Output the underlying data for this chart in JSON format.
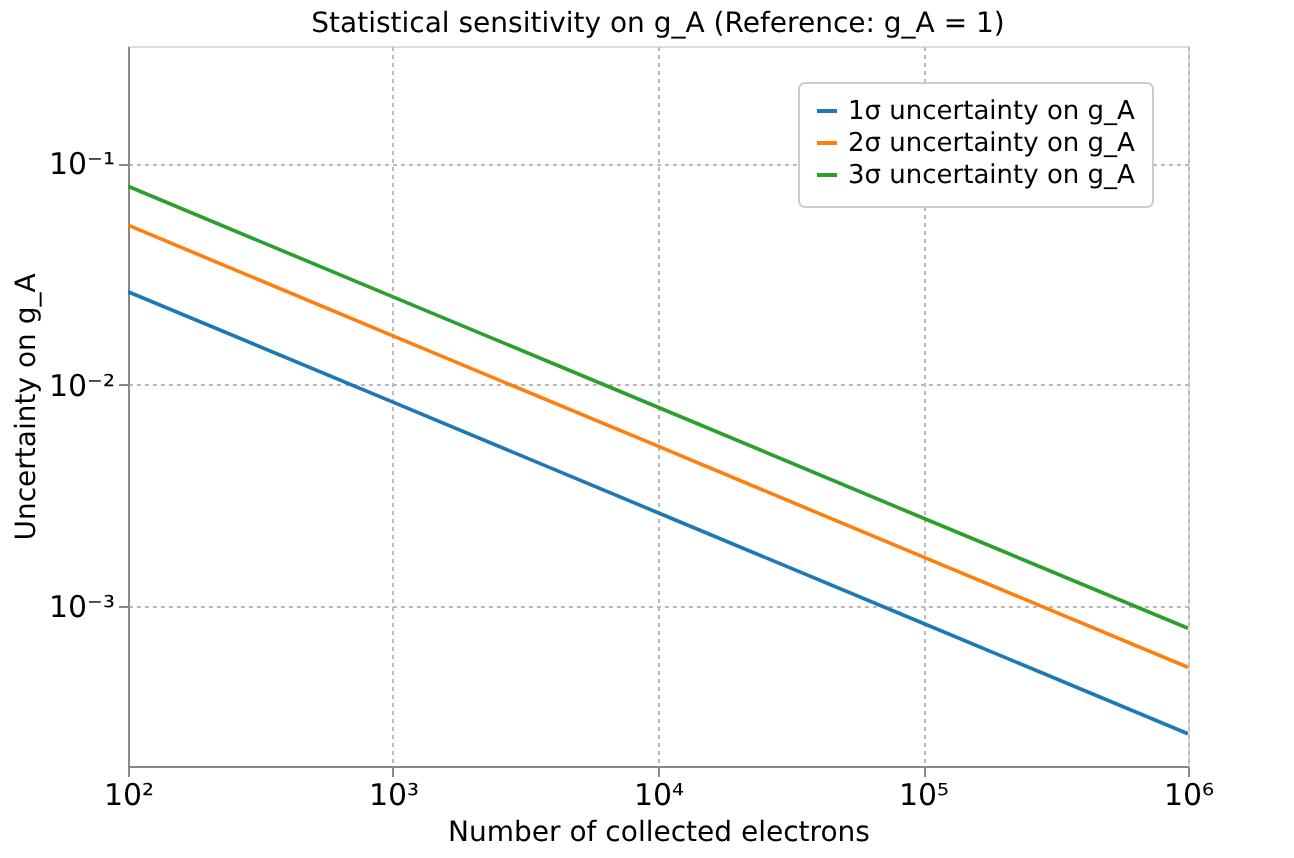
{
  "chart_data": {
    "type": "line",
    "title": "Statistical sensitivity on g_A (Reference: g_A = 1)",
    "xlabel": "Number of collected electrons",
    "ylabel": "Uncertainty on g_A",
    "x": [
      100,
      1000,
      10000,
      100000,
      1000000
    ],
    "series": [
      {
        "name": "1σ uncertainty on g_A",
        "color": "#1f77b4",
        "values": [
          0.0263,
          0.00832,
          0.00263,
          0.000832,
          0.000263
        ]
      },
      {
        "name": "2σ uncertainty on g_A",
        "color": "#ff7f0e",
        "values": [
          0.0526,
          0.0166,
          0.00526,
          0.00166,
          0.000526
        ]
      },
      {
        "name": "3σ uncertainty on g_A",
        "color": "#2ca02c",
        "values": [
          0.0789,
          0.0249,
          0.00789,
          0.00249,
          0.000789
        ]
      }
    ],
    "log": "xy",
    "xlim": [
      100,
      1000000
    ],
    "ylim": [
      0.000188,
      0.34
    ],
    "xticks": [
      {
        "value": 100,
        "label": "10²"
      },
      {
        "value": 1000,
        "label": "10³"
      },
      {
        "value": 10000,
        "label": "10⁴"
      },
      {
        "value": 100000,
        "label": "10⁵"
      },
      {
        "value": 1000000,
        "label": "10⁶"
      }
    ],
    "yticks": [
      {
        "value": 0.001,
        "label": "10⁻³"
      },
      {
        "value": 0.01,
        "label": "10⁻²"
      },
      {
        "value": 0.1,
        "label": "10⁻¹"
      }
    ],
    "grid": true,
    "legend": "top right",
    "line_style": "solid",
    "marker": "none"
  }
}
